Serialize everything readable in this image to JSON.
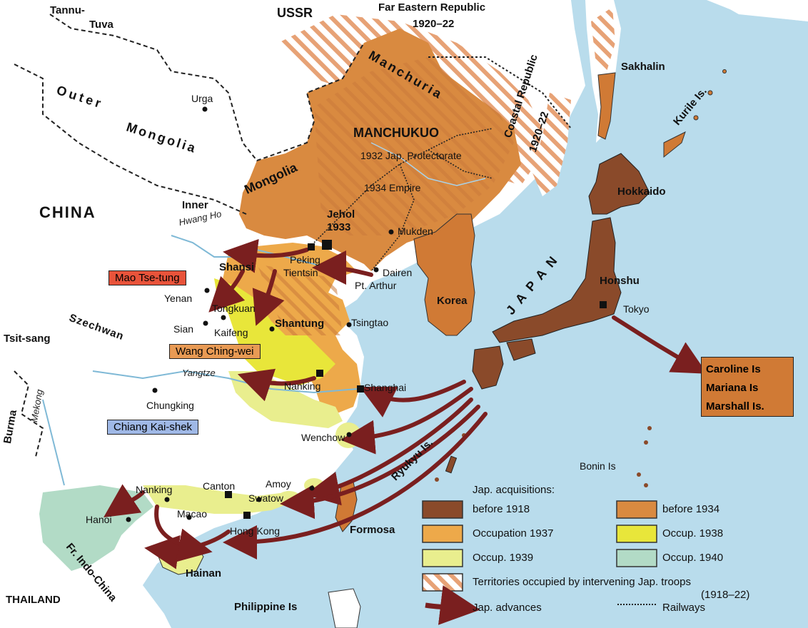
{
  "colors": {
    "sea": "#b9dcec",
    "land": "#ffffff",
    "before_1918": "#8a4a2a",
    "before_1934": "#d98a40",
    "occupation_1937": "#eda94a",
    "occup_1938": "#e8e63a",
    "occup_1939": "#e9ee8e",
    "occup_1940": "#b2dbc6",
    "hatch": "#e7a276",
    "arrow": "#7a1f1f",
    "mao_box": "#e8533a",
    "wang_box": "#e89a54",
    "chiang_box": "#9fb8e6",
    "mandate_box": "#d07a35"
  },
  "regions": {
    "ussr": "USSR",
    "far_eastern_republic": "Far Eastern Republic",
    "far_eastern_years": "1920–22",
    "tannu_tuva_1": "Tannu-",
    "tannu_tuva_2": "Tuva",
    "outer_mongolia_1": "Outer",
    "outer_mongolia_2": "Mongolia",
    "china": "CHINA",
    "inner": "Inner",
    "mongolia": "Mongolia",
    "manchuria": "Manchuria",
    "manchukuo": "MANCHUKUO",
    "protectorate": "1932 Jap. Protectorate",
    "empire": "1934 Empire",
    "jehol": "Jehol",
    "jehol_year": "1933",
    "coastal_republic": "Coastal Republic",
    "coastal_years": "1920–22",
    "sakhalin": "Sakhalin",
    "kurile": "Kurile Is.",
    "hokkaido": "Hokkaido",
    "japan": "JAPAN",
    "honshu": "Honshu",
    "korea": "Korea",
    "shansi": "Shansi",
    "shantung": "Shantung",
    "szechwan": "Szechwan",
    "tsit_sang": "Tsit-sang",
    "burma": "Burma",
    "mekong": "Mekong",
    "yangtze": "Yangtze",
    "hwang_ho": "Hwang Ho",
    "ryukyu": "Ryukyu Is.",
    "bonin": "Bonin Is",
    "formosa": "Formosa",
    "hainan": "Hainan",
    "fr_indo_china": "Fr. Indo-China",
    "thailand": "THAILAND",
    "philippine": "Philippine Is"
  },
  "cities": {
    "urga": "Urga",
    "peking": "Peking",
    "tientsin": "Tientsin",
    "mukden": "Mukden",
    "dairen": "Dairen",
    "pt_arthur": "Pt. Arthur",
    "yenan": "Yenan",
    "tongkuan": "Tongkuan",
    "sian": "Sian",
    "kaifeng": "Kaifeng",
    "tsingtao": "Tsingtao",
    "nanking": "Nanking",
    "shanghai": "Shanghai",
    "chungking": "Chungking",
    "wenchow": "Wenchow",
    "amoy": "Amoy",
    "canton": "Canton",
    "swatow": "Swatow",
    "macao": "Macao",
    "hong_kong": "Hong Kong",
    "nanking_south": "Nanking",
    "hanoi": "Hanoi",
    "tokyo": "Tokyo"
  },
  "govts": {
    "mao": "Mao Tse-tung",
    "wang": "Wang Ching-wei",
    "chiang": "Chiang Kai-shek"
  },
  "mandate_islands": [
    "Caroline Is",
    "Mariana Is",
    "Marshall Is."
  ],
  "legend": {
    "title": "Jap. acquisitions:",
    "items": [
      {
        "label": "before 1918",
        "color": "#8a4a2a"
      },
      {
        "label": "Occupation 1937",
        "color": "#eda94a"
      },
      {
        "label": "Occup. 1939",
        "color": "#e9ee8e"
      },
      {
        "label": "before 1934",
        "color": "#d98a40"
      },
      {
        "label": "Occup. 1938",
        "color": "#e8e63a"
      },
      {
        "label": "Occup. 1940",
        "color": "#b2dbc6"
      }
    ],
    "territories": "Territories occupied by intervening Jap. troops",
    "territories_years": "(1918–22)",
    "advances": "Jap. advances",
    "railways": "Railways"
  }
}
